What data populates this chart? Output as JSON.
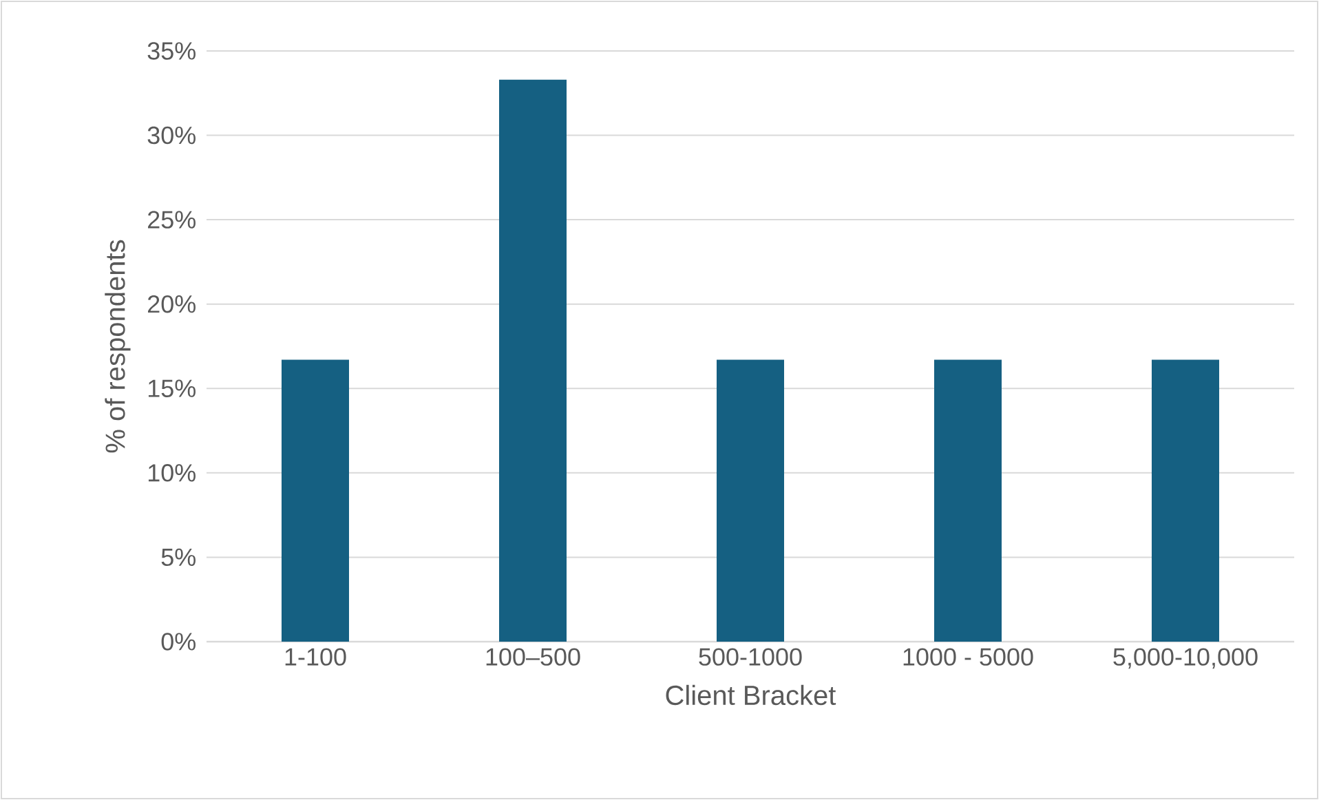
{
  "chart_data": {
    "type": "bar",
    "xlabel": "Client Bracket",
    "ylabel": "% of respondents",
    "categories": [
      "1-100",
      "100–500",
      "500-1000",
      "1000 - 5000",
      "5,000-10,000"
    ],
    "values": [
      16.7,
      33.3,
      16.7,
      16.7,
      16.7
    ],
    "color": "#156082",
    "ylim": [
      0,
      35
    ],
    "yticks": [
      {
        "value": 0,
        "label": "0%"
      },
      {
        "value": 5,
        "label": "5%"
      },
      {
        "value": 10,
        "label": "10%"
      },
      {
        "value": 15,
        "label": "15%"
      },
      {
        "value": 20,
        "label": "20%"
      },
      {
        "value": 25,
        "label": "25%"
      },
      {
        "value": 30,
        "label": "30%"
      },
      {
        "value": 35,
        "label": "35%"
      }
    ],
    "grid": "y"
  }
}
